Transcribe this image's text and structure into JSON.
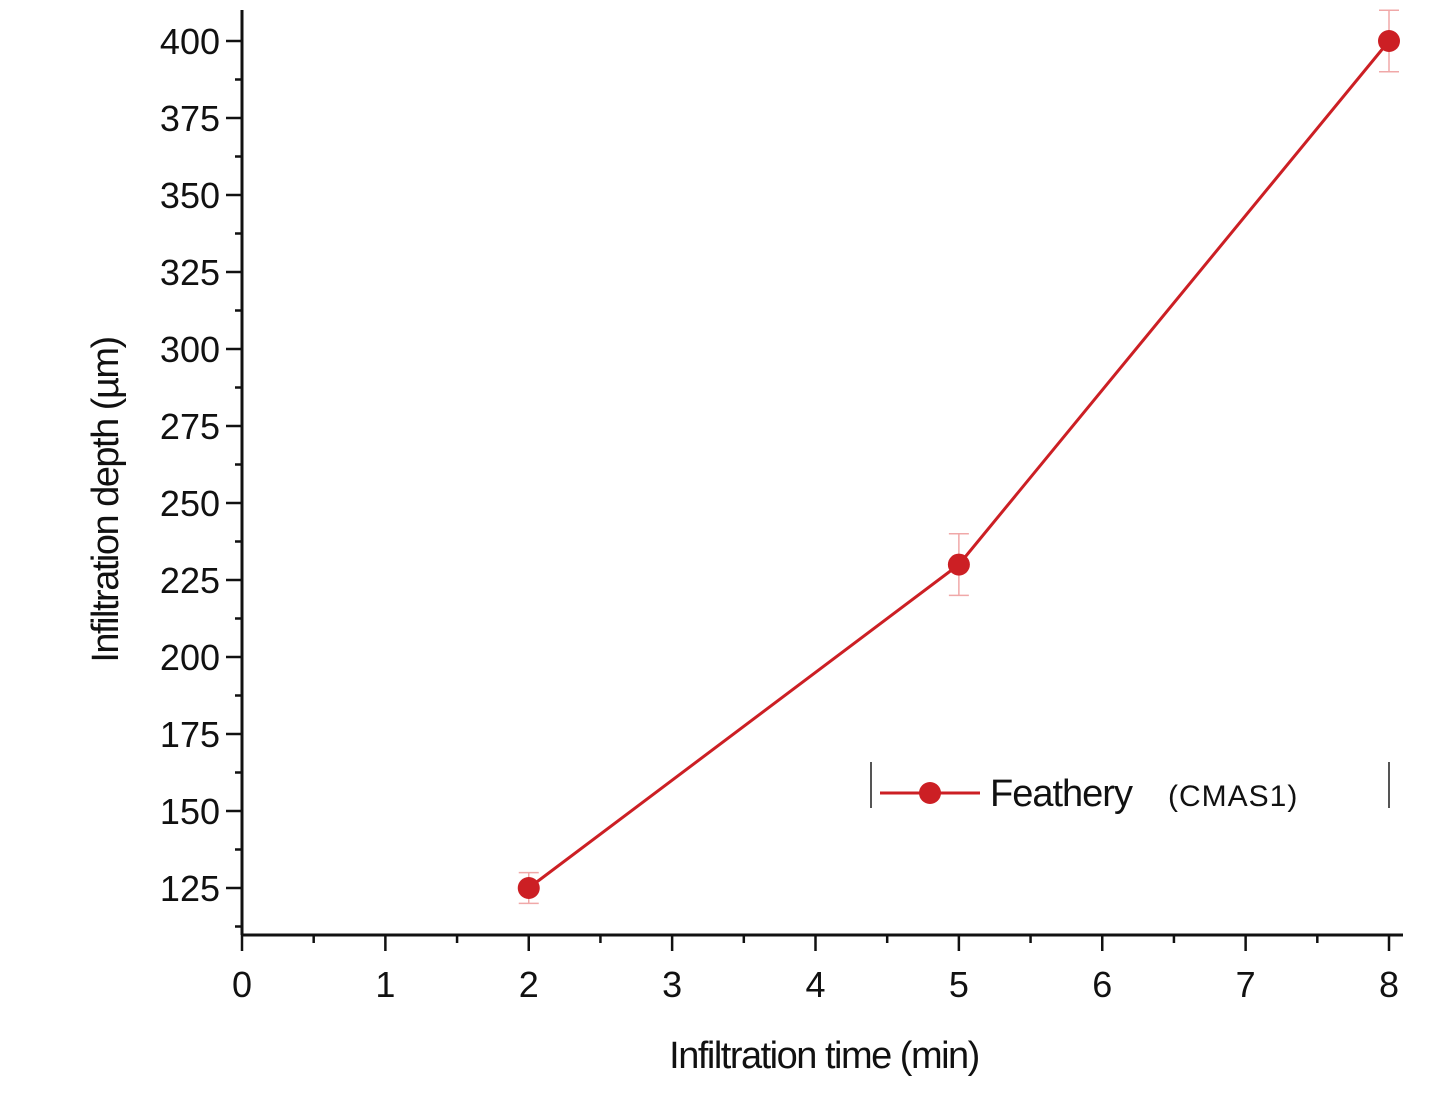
{
  "chart_data": {
    "type": "line",
    "xlabel": "Infiltration time (min)",
    "ylabel": "Infiltration depth (µm)",
    "xlim": [
      0,
      8
    ],
    "ylim": [
      110,
      410
    ],
    "x_ticks": [
      0,
      1,
      2,
      3,
      4,
      5,
      6,
      7,
      8
    ],
    "y_ticks": [
      125,
      150,
      175,
      200,
      225,
      250,
      275,
      300,
      325,
      350,
      375,
      400
    ],
    "grid": false,
    "legend_position": "lower-right",
    "series": [
      {
        "name": "Feathery",
        "name_suffix": "(CMAS1)",
        "color": "#cc1f24",
        "marker": "circle",
        "x": [
          2,
          5,
          8
        ],
        "y": [
          125,
          230,
          400
        ],
        "error": [
          5,
          10,
          10
        ]
      }
    ]
  }
}
